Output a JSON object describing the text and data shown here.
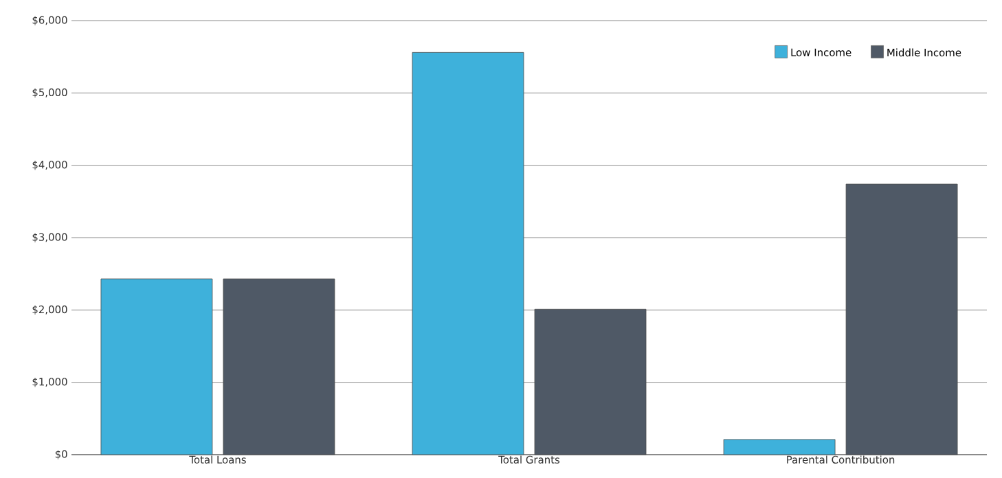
{
  "chart_data": {
    "type": "bar",
    "categories": [
      "Total Loans",
      "Total Grants",
      "Parental Contribution"
    ],
    "series": [
      {
        "name": "Low Income",
        "color": "#3eb1db",
        "values": [
          2430,
          5560,
          210
        ]
      },
      {
        "name": "Middle Income",
        "color": "#4f5966",
        "values": [
          2430,
          2010,
          3740
        ]
      }
    ],
    "ylim": [
      0,
      6000
    ],
    "yticks": [
      {
        "value": 0,
        "label": "$0"
      },
      {
        "value": 1000,
        "label": "$1,000"
      },
      {
        "value": 2000,
        "label": "$2,000"
      },
      {
        "value": 3000,
        "label": "$3,000"
      },
      {
        "value": 4000,
        "label": "$4,000"
      },
      {
        "value": 5000,
        "label": "$5,000"
      },
      {
        "value": 6000,
        "label": "$6,000"
      }
    ],
    "grid": "y",
    "legend": "top right"
  }
}
